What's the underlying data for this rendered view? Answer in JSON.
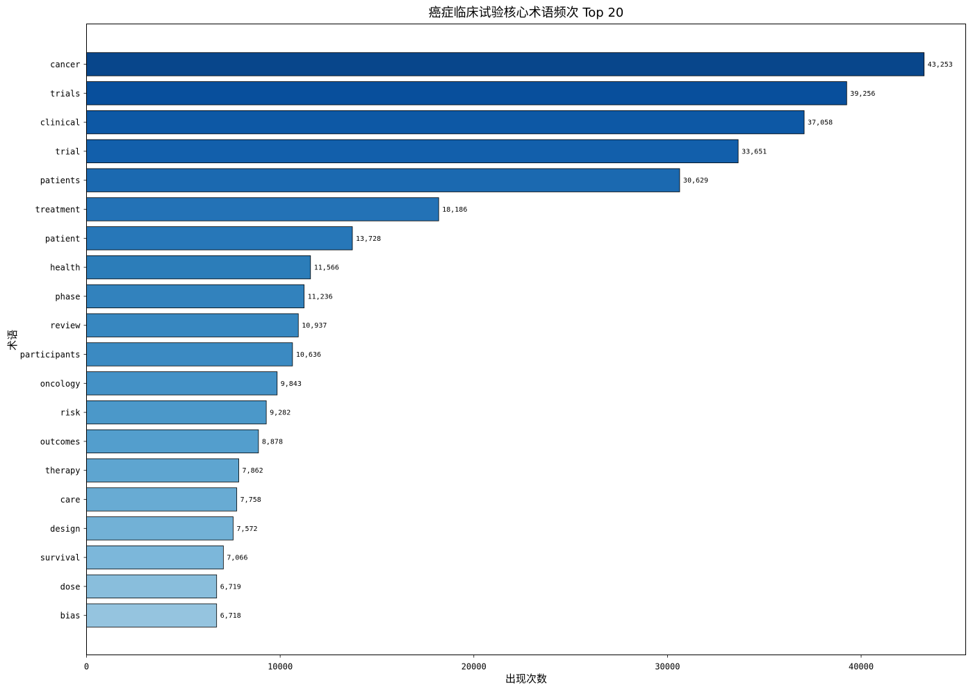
{
  "chart_data": {
    "type": "bar",
    "orientation": "horizontal",
    "title": "癌症临床试验核心术语频次 Top 20",
    "xlabel": "出现次数",
    "ylabel": "术语",
    "xlim": [
      0,
      45400
    ],
    "xticks": [
      0,
      10000,
      20000,
      30000,
      40000
    ],
    "xtick_labels": [
      "0",
      "10000",
      "20000",
      "30000",
      "40000"
    ],
    "grid": false,
    "categories": [
      "cancer",
      "trials",
      "clinical",
      "trial",
      "patients",
      "treatment",
      "patient",
      "health",
      "phase",
      "review",
      "participants",
      "oncology",
      "risk",
      "outcomes",
      "therapy",
      "care",
      "design",
      "survival",
      "dose",
      "bias"
    ],
    "values": [
      43253,
      39256,
      37058,
      33651,
      30629,
      18186,
      13728,
      11566,
      11236,
      10937,
      10636,
      9843,
      9282,
      8878,
      7862,
      7758,
      7572,
      7066,
      6719,
      6718
    ],
    "value_labels": [
      "43,253",
      "39,256",
      "37,058",
      "33,651",
      "30,629",
      "18,186",
      "13,728",
      "11,566",
      "11,236",
      "10,937",
      "10,636",
      "9,843",
      "9,282",
      "8,878",
      "7,862",
      "7,758",
      "7,572",
      "7,066",
      "6,719",
      "6,718"
    ],
    "colors": [
      "#08468b",
      "#084f9c",
      "#0d58a5",
      "#125fab",
      "#1b69b0",
      "#2372b6",
      "#2777b8",
      "#2c7db9",
      "#3282bd",
      "#3787c0",
      "#3b8ac2",
      "#4391c6",
      "#4b98c9",
      "#539ecd",
      "#5ea5d0",
      "#68abd3",
      "#72b1d6",
      "#7cb7da",
      "#89bedc",
      "#95c4df"
    ],
    "edge_color": "#000000"
  }
}
